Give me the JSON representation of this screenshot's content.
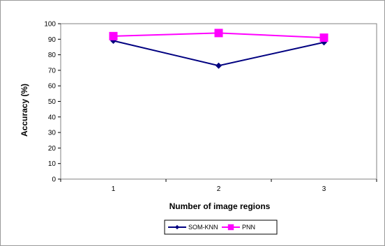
{
  "chart_data": {
    "type": "line",
    "x": [
      1,
      2,
      3
    ],
    "categories": [
      "1",
      "2",
      "3"
    ],
    "series": [
      {
        "name": "SOM-KNN",
        "values": [
          89,
          73,
          88
        ],
        "color": "#000080",
        "marker": "diamond"
      },
      {
        "name": "PNN",
        "values": [
          92,
          94,
          91
        ],
        "color": "#ff00ff",
        "marker": "square"
      }
    ],
    "xlabel": "Number of image regions",
    "ylabel": "Accuracy  (%)",
    "ylim": [
      0,
      100
    ],
    "yticks": [
      0,
      10,
      20,
      30,
      40,
      50,
      60,
      70,
      80,
      90,
      100
    ],
    "grid": false,
    "legend": "bottom",
    "plot_background": "#ffffff"
  }
}
